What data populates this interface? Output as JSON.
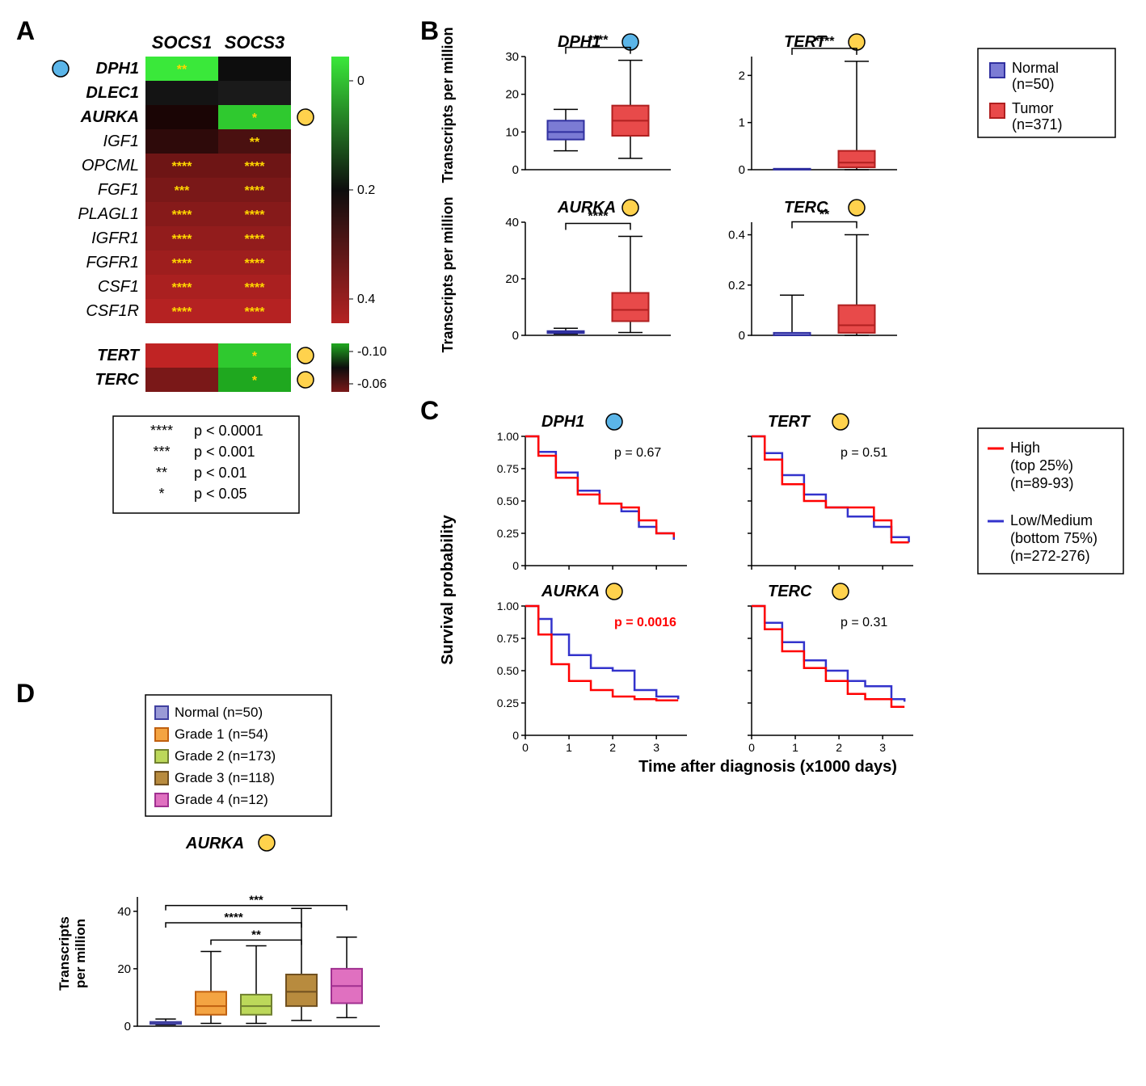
{
  "panelA": {
    "label": "A",
    "col_headers": [
      "SOCS1",
      "SOCS3"
    ],
    "genes_top": [
      {
        "name": "DPH1",
        "bold": true,
        "dot": "blue",
        "cells": [
          {
            "color": "#3ae83a",
            "sig": "**"
          },
          {
            "color": "#0d0d0d",
            "sig": ""
          }
        ]
      },
      {
        "name": "DLEC1",
        "bold": true,
        "dot": "",
        "cells": [
          {
            "color": "#141414",
            "sig": ""
          },
          {
            "color": "#1a1a1a",
            "sig": ""
          }
        ]
      },
      {
        "name": "AURKA",
        "bold": true,
        "dot": "yellow",
        "dot_side": "right",
        "cells": [
          {
            "color": "#1a0505",
            "sig": ""
          },
          {
            "color": "#2fc92f",
            "sig": "*"
          }
        ]
      },
      {
        "name": "IGF1",
        "bold": false,
        "dot": "",
        "cells": [
          {
            "color": "#2e0a0a",
            "sig": ""
          },
          {
            "color": "#4a1010",
            "sig": "**"
          }
        ]
      },
      {
        "name": "OPCML",
        "bold": false,
        "dot": "",
        "cells": [
          {
            "color": "#6e1515",
            "sig": "****"
          },
          {
            "color": "#6e1515",
            "sig": "****"
          }
        ]
      },
      {
        "name": "FGF1",
        "bold": false,
        "dot": "",
        "cells": [
          {
            "color": "#7a1818",
            "sig": "***"
          },
          {
            "color": "#7a1818",
            "sig": "****"
          }
        ]
      },
      {
        "name": "PLAGL1",
        "bold": false,
        "dot": "",
        "cells": [
          {
            "color": "#861a1a",
            "sig": "****"
          },
          {
            "color": "#861a1a",
            "sig": "****"
          }
        ]
      },
      {
        "name": "IGFR1",
        "bold": false,
        "dot": "",
        "cells": [
          {
            "color": "#921c1c",
            "sig": "****"
          },
          {
            "color": "#921c1c",
            "sig": "****"
          }
        ]
      },
      {
        "name": "FGFR1",
        "bold": false,
        "dot": "",
        "cells": [
          {
            "color": "#9e1e1e",
            "sig": "****"
          },
          {
            "color": "#9e1e1e",
            "sig": "****"
          }
        ]
      },
      {
        "name": "CSF1",
        "bold": false,
        "dot": "",
        "cells": [
          {
            "color": "#aa2020",
            "sig": "****"
          },
          {
            "color": "#aa2020",
            "sig": "****"
          }
        ]
      },
      {
        "name": "CSF1R",
        "bold": false,
        "dot": "",
        "cells": [
          {
            "color": "#b52222",
            "sig": "****"
          },
          {
            "color": "#b52222",
            "sig": "****"
          }
        ]
      }
    ],
    "genes_bottom": [
      {
        "name": "TERT",
        "bold": true,
        "dot": "yellow",
        "dot_side": "right",
        "cells": [
          {
            "color": "#c02424",
            "sig": ""
          },
          {
            "color": "#2fc92f",
            "sig": "*"
          }
        ]
      },
      {
        "name": "TERC",
        "bold": true,
        "dot": "yellow",
        "dot_side": "right",
        "cells": [
          {
            "color": "#7a1818",
            "sig": ""
          },
          {
            "color": "#1fa81f",
            "sig": "*"
          }
        ]
      }
    ],
    "colorbar_top": {
      "ticks": [
        "0",
        "0.2",
        "0.4"
      ],
      "colors": [
        "#3ae83a",
        "#0d0d0d",
        "#b52222"
      ]
    },
    "colorbar_bottom": {
      "ticks": [
        "-0.10",
        "-0.06"
      ],
      "colors": [
        "#1fa81f",
        "#0d0d0d",
        "#7a1818"
      ]
    },
    "sig_key": [
      {
        "stars": "****",
        "label": "p < 0.0001"
      },
      {
        "stars": "***",
        "label": "p < 0.001"
      },
      {
        "stars": "**",
        "label": "p < 0.01"
      },
      {
        "stars": "*",
        "label": "p < 0.05"
      }
    ]
  },
  "panelB": {
    "label": "B",
    "ylabel": "Transcripts per million",
    "legend": [
      {
        "label": "Normal",
        "n": "(n=50)",
        "color": "#7b7bd4",
        "stroke": "#3030a0"
      },
      {
        "label": "Tumor",
        "n": "(n=371)",
        "color": "#e84a4a",
        "stroke": "#b02020"
      }
    ],
    "plots": [
      {
        "title": "DPH1",
        "dot": "blue",
        "ylim": [
          0,
          30
        ],
        "yticks": [
          0,
          10,
          20,
          30
        ],
        "sig": "****",
        "boxes": [
          {
            "q1": 8,
            "med": 10,
            "q3": 13,
            "lw": 5,
            "uw": 16,
            "color": "#7b7bd4",
            "stroke": "#3030a0"
          },
          {
            "q1": 9,
            "med": 13,
            "q3": 17,
            "lw": 3,
            "uw": 29,
            "color": "#e84a4a",
            "stroke": "#b02020"
          }
        ]
      },
      {
        "title": "TERT",
        "dot": "yellow",
        "ylim": [
          0,
          2.4
        ],
        "yticks": [
          0,
          1,
          2
        ],
        "sig": "****",
        "boxes": [
          {
            "q1": 0,
            "med": 0,
            "q3": 0.02,
            "lw": 0,
            "uw": 0.02,
            "color": "#7b7bd4",
            "stroke": "#3030a0"
          },
          {
            "q1": 0.05,
            "med": 0.15,
            "q3": 0.4,
            "lw": 0,
            "uw": 2.3,
            "color": "#e84a4a",
            "stroke": "#b02020"
          }
        ]
      },
      {
        "title": "AURKA",
        "dot": "yellow",
        "ylim": [
          0,
          40
        ],
        "yticks": [
          0,
          20,
          40
        ],
        "sig": "****",
        "boxes": [
          {
            "q1": 0.8,
            "med": 1,
            "q3": 1.5,
            "lw": 0.5,
            "uw": 2.5,
            "color": "#7b7bd4",
            "stroke": "#3030a0"
          },
          {
            "q1": 5,
            "med": 9,
            "q3": 15,
            "lw": 1,
            "uw": 35,
            "color": "#e84a4a",
            "stroke": "#b02020"
          }
        ]
      },
      {
        "title": "TERC",
        "dot": "yellow",
        "ylim": [
          0,
          0.45
        ],
        "yticks": [
          0,
          0.2,
          0.4
        ],
        "sig": "**",
        "boxes": [
          {
            "q1": 0,
            "med": 0,
            "q3": 0.01,
            "lw": 0,
            "uw": 0.16,
            "color": "#7b7bd4",
            "stroke": "#3030a0"
          },
          {
            "q1": 0.01,
            "med": 0.04,
            "q3": 0.12,
            "lw": 0,
            "uw": 0.4,
            "color": "#e84a4a",
            "stroke": "#b02020"
          }
        ]
      }
    ]
  },
  "panelC": {
    "label": "C",
    "ylabel": "Survival probability",
    "xlabel": "Time after diagnosis (x1000 days)",
    "legend": [
      {
        "label": "High",
        "sub1": "(top 25%)",
        "sub2": "(n=89-93)",
        "color": "#ff0000"
      },
      {
        "label": "Low/Medium",
        "sub1": "(bottom 75%)",
        "sub2": "(n=272-276)",
        "color": "#3333cc"
      }
    ],
    "plots": [
      {
        "title": "DPH1",
        "dot": "blue",
        "pval": "p = 0.67",
        "pcolor": "#000000",
        "red": [
          [
            0,
            1
          ],
          [
            0.3,
            0.85
          ],
          [
            0.7,
            0.68
          ],
          [
            1.2,
            0.55
          ],
          [
            1.7,
            0.48
          ],
          [
            2.2,
            0.45
          ],
          [
            2.6,
            0.35
          ],
          [
            3.0,
            0.25
          ],
          [
            3.4,
            0.22
          ]
        ],
        "blue": [
          [
            0,
            1
          ],
          [
            0.3,
            0.88
          ],
          [
            0.7,
            0.72
          ],
          [
            1.2,
            0.58
          ],
          [
            1.7,
            0.48
          ],
          [
            2.2,
            0.42
          ],
          [
            2.6,
            0.3
          ],
          [
            3.0,
            0.25
          ],
          [
            3.4,
            0.2
          ]
        ]
      },
      {
        "title": "TERT",
        "dot": "yellow",
        "pval": "p = 0.51",
        "pcolor": "#000000",
        "red": [
          [
            0,
            1
          ],
          [
            0.3,
            0.82
          ],
          [
            0.7,
            0.63
          ],
          [
            1.2,
            0.5
          ],
          [
            1.7,
            0.45
          ],
          [
            2.2,
            0.45
          ],
          [
            2.8,
            0.35
          ],
          [
            3.2,
            0.18
          ],
          [
            3.6,
            0.18
          ]
        ],
        "blue": [
          [
            0,
            1
          ],
          [
            0.3,
            0.87
          ],
          [
            0.7,
            0.7
          ],
          [
            1.2,
            0.55
          ],
          [
            1.7,
            0.45
          ],
          [
            2.2,
            0.38
          ],
          [
            2.8,
            0.3
          ],
          [
            3.2,
            0.22
          ],
          [
            3.6,
            0.18
          ]
        ]
      },
      {
        "title": "AURKA",
        "dot": "yellow",
        "pval": "p = 0.0016",
        "pcolor": "#ff0000",
        "red": [
          [
            0,
            1
          ],
          [
            0.3,
            0.78
          ],
          [
            0.6,
            0.55
          ],
          [
            1.0,
            0.42
          ],
          [
            1.5,
            0.35
          ],
          [
            2.0,
            0.3
          ],
          [
            2.5,
            0.28
          ],
          [
            3.0,
            0.27
          ],
          [
            3.5,
            0.27
          ]
        ],
        "blue": [
          [
            0,
            1
          ],
          [
            0.3,
            0.9
          ],
          [
            0.6,
            0.78
          ],
          [
            1.0,
            0.62
          ],
          [
            1.5,
            0.52
          ],
          [
            2.0,
            0.5
          ],
          [
            2.5,
            0.35
          ],
          [
            3.0,
            0.3
          ],
          [
            3.5,
            0.28
          ]
        ]
      },
      {
        "title": "TERC",
        "dot": "yellow",
        "pval": "p = 0.31",
        "pcolor": "#000000",
        "red": [
          [
            0,
            1
          ],
          [
            0.3,
            0.82
          ],
          [
            0.7,
            0.65
          ],
          [
            1.2,
            0.52
          ],
          [
            1.7,
            0.42
          ],
          [
            2.2,
            0.32
          ],
          [
            2.6,
            0.28
          ],
          [
            3.2,
            0.22
          ],
          [
            3.5,
            0.22
          ]
        ],
        "blue": [
          [
            0,
            1
          ],
          [
            0.3,
            0.87
          ],
          [
            0.7,
            0.72
          ],
          [
            1.2,
            0.58
          ],
          [
            1.7,
            0.5
          ],
          [
            2.2,
            0.42
          ],
          [
            2.6,
            0.38
          ],
          [
            3.2,
            0.28
          ],
          [
            3.5,
            0.26
          ]
        ]
      }
    ],
    "xticks": [
      0,
      1,
      2,
      3
    ],
    "yticks": [
      0,
      0.25,
      0.5,
      0.75,
      1.0
    ],
    "yticklabels": [
      "0",
      "0.25",
      "0.50",
      "0.75",
      "1.00"
    ]
  },
  "panelD": {
    "label": "D",
    "title": "AURKA",
    "dot": "yellow",
    "ylabel": "Transcripts\nper million",
    "ylim": [
      0,
      45
    ],
    "yticks": [
      0,
      20,
      40
    ],
    "legend": [
      {
        "label": "Normal (n=50)",
        "color": "#9a9ad6",
        "stroke": "#4040a0"
      },
      {
        "label": "Grade 1 (n=54)",
        "color": "#f4a442",
        "stroke": "#c06010"
      },
      {
        "label": "Grade 2 (n=173)",
        "color": "#bcd85a",
        "stroke": "#708030"
      },
      {
        "label": "Grade 3 (n=118)",
        "color": "#b88b3e",
        "stroke": "#705020"
      },
      {
        "label": "Grade 4 (n=12)",
        "color": "#e070c0",
        "stroke": "#a03090"
      }
    ],
    "boxes": [
      {
        "q1": 0.8,
        "med": 1,
        "q3": 1.5,
        "lw": 0.5,
        "uw": 2.5
      },
      {
        "q1": 4,
        "med": 7,
        "q3": 12,
        "lw": 1,
        "uw": 26
      },
      {
        "q1": 4,
        "med": 7,
        "q3": 11,
        "lw": 1,
        "uw": 28
      },
      {
        "q1": 7,
        "med": 12,
        "q3": 18,
        "lw": 2,
        "uw": 41
      },
      {
        "q1": 8,
        "med": 14,
        "q3": 20,
        "lw": 3,
        "uw": 31
      }
    ],
    "sigs": [
      {
        "from": 1,
        "to": 3,
        "label": "**",
        "y": 30
      },
      {
        "from": 0,
        "to": 3,
        "label": "****",
        "y": 36
      },
      {
        "from": 0,
        "to": 4,
        "label": "***",
        "y": 42
      }
    ]
  }
}
